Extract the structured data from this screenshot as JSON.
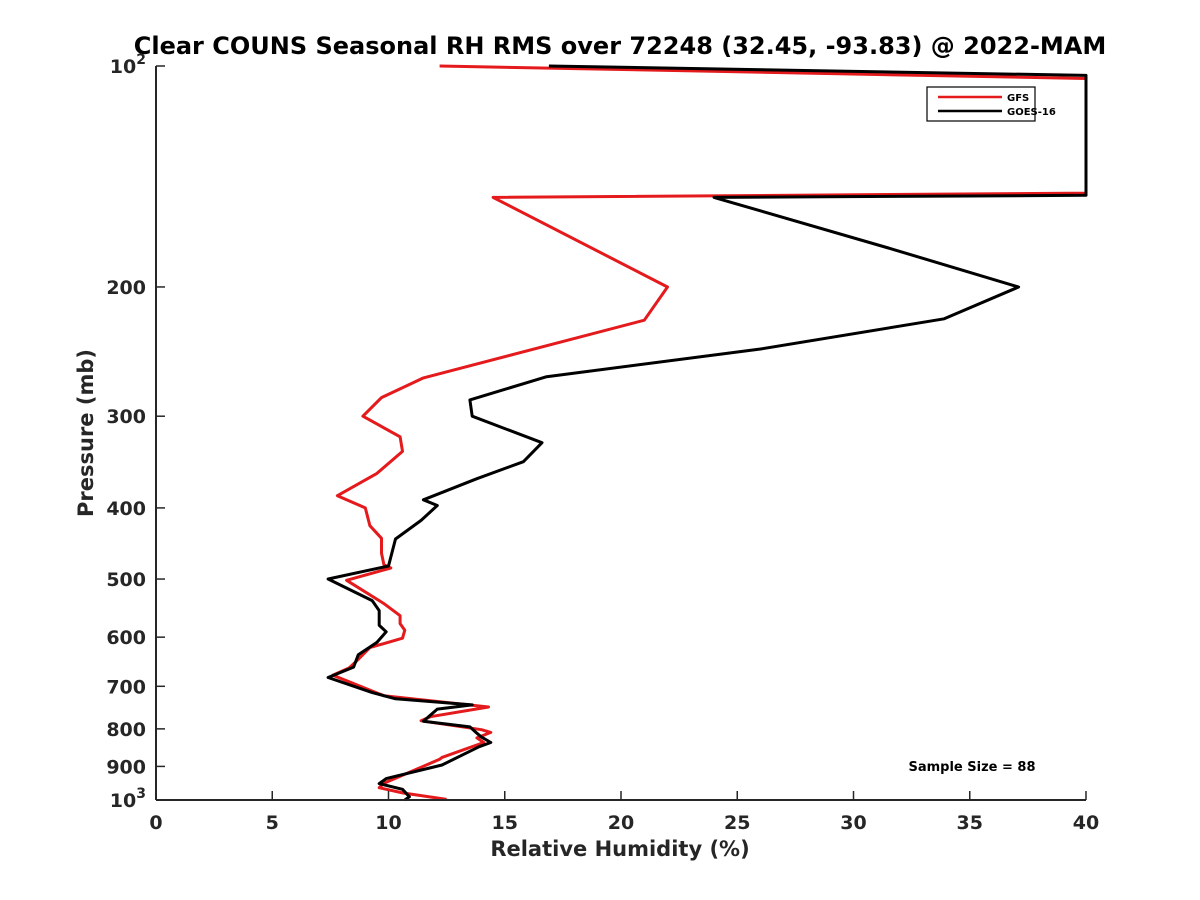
{
  "chart_data": {
    "type": "line",
    "title": "Clear COUNS Seasonal RH RMS over 72248 (32.45, -93.83) @ 2022-MAM",
    "xlabel": "Relative Humidity (%)",
    "ylabel": "Pressure (mb)",
    "xlim": [
      0,
      40
    ],
    "ylim": [
      100,
      1000
    ],
    "yscale": "log",
    "y_reversed": true,
    "grid": false,
    "legend_position": "top-right",
    "xticks": [
      "0",
      "5",
      "10",
      "15",
      "20",
      "25",
      "30",
      "35",
      "40"
    ],
    "yticks": [
      {
        "value": 100,
        "base": "10",
        "exp": "2"
      },
      {
        "value": 200,
        "label": "200"
      },
      {
        "value": 300,
        "label": "300"
      },
      {
        "value": 400,
        "label": "400"
      },
      {
        "value": 500,
        "label": "500"
      },
      {
        "value": 600,
        "label": "600"
      },
      {
        "value": 700,
        "label": "700"
      },
      {
        "value": 800,
        "label": "800"
      },
      {
        "value": 900,
        "label": "900"
      },
      {
        "value": 1000,
        "base": "10",
        "exp": "3"
      }
    ],
    "series": [
      {
        "name": "GFS",
        "color": "#e41a1c",
        "points": [
          [
            12.2,
            100
          ],
          [
            40,
            104
          ],
          [
            40,
            149
          ],
          [
            14.5,
            151
          ],
          [
            22.0,
            200
          ],
          [
            21.0,
            222
          ],
          [
            11.5,
            266
          ],
          [
            9.7,
            283
          ],
          [
            8.9,
            300
          ],
          [
            10.5,
            320
          ],
          [
            10.6,
            335
          ],
          [
            9.5,
            359
          ],
          [
            7.8,
            385
          ],
          [
            9.0,
            400
          ],
          [
            9.2,
            423
          ],
          [
            9.7,
            440
          ],
          [
            9.7,
            461
          ],
          [
            9.8,
            478
          ],
          [
            10.1,
            483
          ],
          [
            8.2,
            502
          ],
          [
            9.8,
            540
          ],
          [
            10.5,
            561
          ],
          [
            10.5,
            575
          ],
          [
            10.7,
            587
          ],
          [
            10.6,
            602
          ],
          [
            9.2,
            620
          ],
          [
            8.6,
            648
          ],
          [
            8.3,
            661
          ],
          [
            7.6,
            676
          ],
          [
            9.8,
            721
          ],
          [
            14.3,
            747
          ],
          [
            11.8,
            770
          ],
          [
            11.4,
            780
          ],
          [
            14.0,
            802
          ],
          [
            14.4,
            809
          ],
          [
            13.8,
            823
          ],
          [
            14.1,
            835
          ],
          [
            12.3,
            875
          ],
          [
            12.2,
            880
          ],
          [
            9.8,
            949
          ],
          [
            9.6,
            962
          ],
          [
            10.6,
            978
          ],
          [
            12.5,
            998
          ]
        ]
      },
      {
        "name": "GOES-16",
        "color": "#000000",
        "points": [
          [
            16.9,
            100
          ],
          [
            40,
            103
          ],
          [
            40,
            150
          ],
          [
            24.0,
            151
          ],
          [
            31.5,
            177
          ],
          [
            37.1,
            200
          ],
          [
            33.9,
            221
          ],
          [
            26.0,
            243
          ],
          [
            16.8,
            265
          ],
          [
            13.5,
            285
          ],
          [
            13.6,
            300
          ],
          [
            16.6,
            326
          ],
          [
            15.8,
            346
          ],
          [
            13.8,
            365
          ],
          [
            11.5,
            390
          ],
          [
            12.1,
            397
          ],
          [
            11.4,
            416
          ],
          [
            10.3,
            441
          ],
          [
            10.0,
            480
          ],
          [
            7.4,
            500
          ],
          [
            9.3,
            535
          ],
          [
            9.6,
            552
          ],
          [
            9.6,
            578
          ],
          [
            9.9,
            590
          ],
          [
            9.5,
            610
          ],
          [
            8.7,
            634
          ],
          [
            8.5,
            659
          ],
          [
            7.4,
            681
          ],
          [
            9.3,
            714
          ],
          [
            10.3,
            728
          ],
          [
            13.6,
            742
          ],
          [
            12.1,
            752
          ],
          [
            11.5,
            781
          ],
          [
            13.5,
            795
          ],
          [
            13.8,
            811
          ],
          [
            14.0,
            821
          ],
          [
            14.4,
            835
          ],
          [
            13.9,
            846
          ],
          [
            12.3,
            896
          ],
          [
            9.9,
            935
          ],
          [
            9.6,
            950
          ],
          [
            10.6,
            967
          ],
          [
            10.9,
            990
          ],
          [
            10.7,
            1000
          ]
        ]
      }
    ],
    "annotations": [
      "Sample Size = 88"
    ]
  }
}
